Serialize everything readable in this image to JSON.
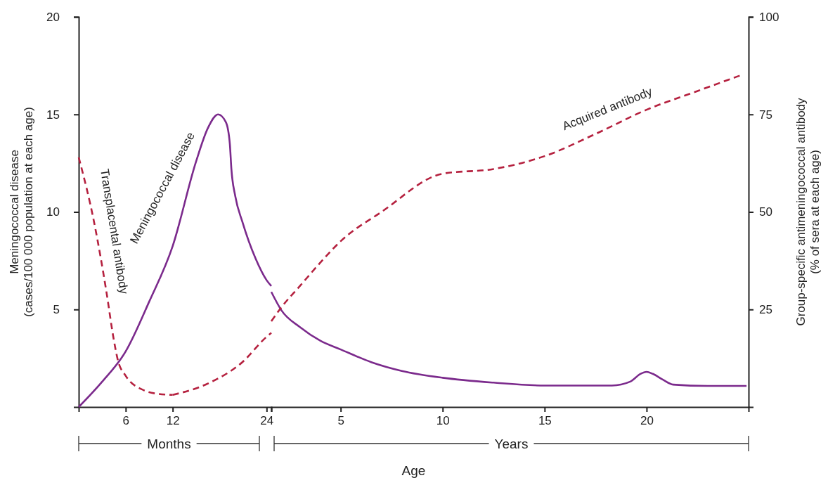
{
  "chart_data": [
    {
      "type": "line",
      "ylabel": "Meningococcal disease\n(cases/100 000 population at each age)",
      "xlim": [
        0,
        24.6
      ],
      "xticks": [
        6,
        12,
        24
      ],
      "ylim": [
        0,
        20
      ],
      "yticks": [
        5,
        10,
        15,
        20
      ],
      "y2lim": [
        0,
        100
      ],
      "grid": false,
      "legend": false,
      "marker": "none",
      "annotations": [
        "Months"
      ],
      "series": [
        {
          "name": "Meningococcal disease",
          "color": "#7b2a8c",
          "line_style": "solid",
          "x": [
            0,
            3,
            6,
            9,
            12,
            15,
            16.5,
            17.8,
            18.8,
            19.3,
            19.5,
            20,
            20.9,
            22.6,
            24,
            24.6
          ],
          "values": [
            0,
            1.3,
            2.85,
            5.4,
            8.25,
            12.6,
            14.3,
            15,
            14.6,
            13.5,
            12.2,
            10.8,
            9.5,
            7.6,
            6.5,
            6.2
          ]
        },
        {
          "name": "Transplacental antibody",
          "color": "#b5213f",
          "line_style": "dashed",
          "axis": "y2",
          "x": [
            0,
            2,
            3.5,
            4.5,
            5,
            6,
            8.3,
            10,
            12
          ],
          "values": [
            64,
            47,
            30,
            17,
            12,
            8,
            4.3,
            3.4,
            3.1
          ]
        },
        {
          "color": "#b5213f",
          "line_style": "dashed",
          "axis": "y2",
          "x": [
            12,
            16.6,
            20.9,
            24,
            24.6
          ],
          "values": [
            3.1,
            6.1,
            11.5,
            18,
            19
          ]
        }
      ]
    },
    {
      "type": "line",
      "xlabel": "Age",
      "y2label": "Group-specific antimeningococcal antibody\n(% of sera at each age)",
      "xlim": [
        1.6,
        25
      ],
      "xticks": [
        5,
        10,
        15,
        20
      ],
      "ylim": [
        0,
        20
      ],
      "y2lim": [
        0,
        100
      ],
      "y2ticks": [
        25,
        50,
        75,
        100
      ],
      "grid": false,
      "legend": false,
      "marker": "none",
      "annotations": [
        "Years"
      ],
      "series": [
        {
          "color": "#7b2a8c",
          "line_style": "solid",
          "x": [
            1.6,
            2.1,
            3,
            4,
            5,
            6.5,
            8,
            10,
            12.5,
            15,
            18.3,
            19.2,
            19.7,
            20,
            20.3,
            20.8,
            21.3,
            23,
            24.9
          ],
          "values": [
            5.9,
            4.95,
            4.1,
            3.4,
            2.95,
            2.3,
            1.85,
            1.5,
            1.25,
            1.1,
            1.1,
            1.3,
            1.7,
            1.8,
            1.7,
            1.4,
            1.15,
            1.08,
            1.08
          ]
        },
        {
          "name": "Acquired antibody",
          "color": "#b5213f",
          "line_style": "dashed",
          "axis": "y2",
          "x": [
            1.6,
            2.1,
            3,
            4,
            5,
            7,
            10,
            12.5,
            15,
            17.5,
            20,
            22.5,
            24.6
          ],
          "values": [
            22,
            25.6,
            31,
            37,
            42.5,
            50,
            59.8,
            61,
            64.3,
            70,
            76.2,
            81,
            85
          ]
        }
      ]
    }
  ]
}
